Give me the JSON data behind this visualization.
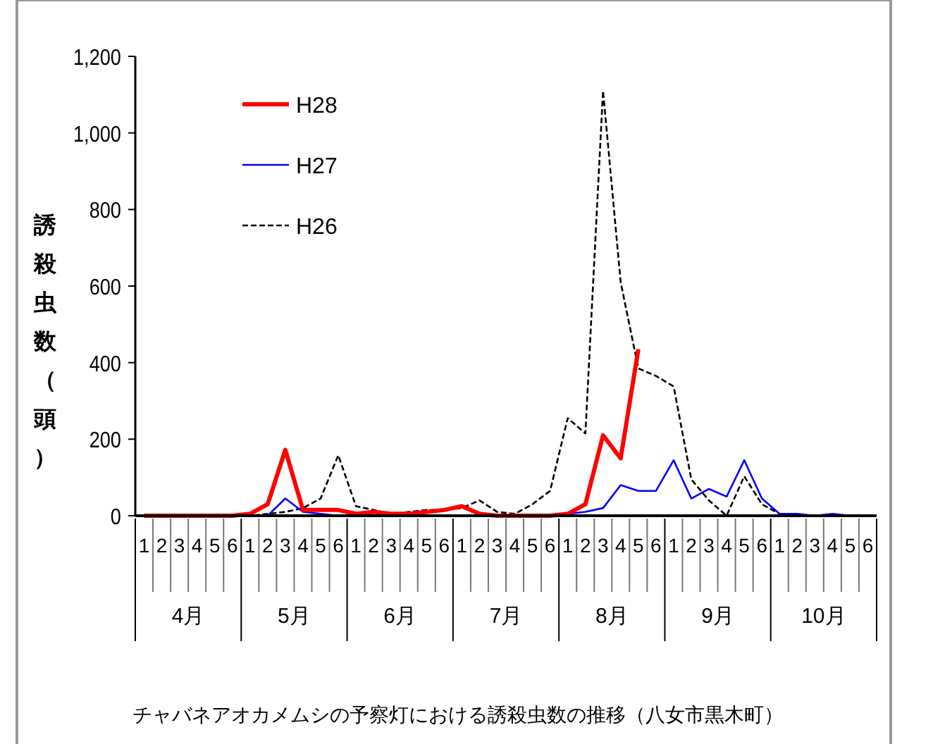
{
  "chart_data": {
    "type": "line",
    "ylabel": "誘殺虫数（頭）",
    "categories": [
      "1",
      "2",
      "3",
      "4",
      "5",
      "6",
      "1",
      "2",
      "3",
      "4",
      "5",
      "6",
      "1",
      "2",
      "3",
      "4",
      "5",
      "6",
      "1",
      "2",
      "3",
      "4",
      "5",
      "6",
      "1",
      "2",
      "3",
      "4",
      "5",
      "6",
      "1",
      "2",
      "3",
      "4",
      "5",
      "6",
      "1",
      "2",
      "3",
      "4",
      "5",
      "6"
    ],
    "series": [
      {
        "name": "H28",
        "color": "#ff0000",
        "line_style": "solid",
        "values": [
          0,
          0,
          0,
          0,
          0,
          0,
          5,
          30,
          172,
          15,
          15,
          15,
          5,
          10,
          5,
          5,
          10,
          15,
          25,
          5,
          0,
          0,
          0,
          0,
          5,
          30,
          210,
          150,
          435,
          null,
          null,
          null,
          null,
          null,
          null,
          null,
          null,
          null,
          null,
          null,
          null,
          null
        ]
      },
      {
        "name": "H27",
        "color": "#0000ff",
        "line_style": "solid",
        "values": [
          null,
          null,
          null,
          null,
          null,
          null,
          0,
          0,
          45,
          10,
          5,
          0,
          0,
          0,
          0,
          0,
          0,
          null,
          null,
          0,
          0,
          0,
          0,
          0,
          5,
          10,
          20,
          80,
          65,
          65,
          145,
          45,
          70,
          50,
          145,
          45,
          5,
          5,
          0,
          5,
          0,
          null
        ]
      },
      {
        "name": "H26",
        "color": "#000000",
        "line_style": "dashed",
        "values": [
          0,
          0,
          0,
          0,
          0,
          0,
          0,
          5,
          10,
          20,
          45,
          158,
          25,
          15,
          5,
          10,
          15,
          15,
          20,
          40,
          10,
          5,
          30,
          65,
          255,
          215,
          1110,
          610,
          385,
          365,
          338,
          95,
          40,
          0,
          103,
          30,
          5,
          0,
          0,
          0,
          0,
          0
        ]
      }
    ],
    "ylim": [
      0,
      1200
    ],
    "yticks": [
      0,
      200,
      400,
      600,
      800,
      {
        "value": 1000,
        "label": "1,000"
      },
      {
        "value": 1200,
        "label": "1,200"
      }
    ],
    "grid": false,
    "legend": "top left",
    "marker": "none",
    "annotations": [
      "4月",
      "5月",
      "6月",
      "7月",
      "8月",
      "9月",
      "10月",
      "チャバネアオカメムシの予察灯における誘殺虫数の推移（八女市黒木町）"
    ]
  }
}
